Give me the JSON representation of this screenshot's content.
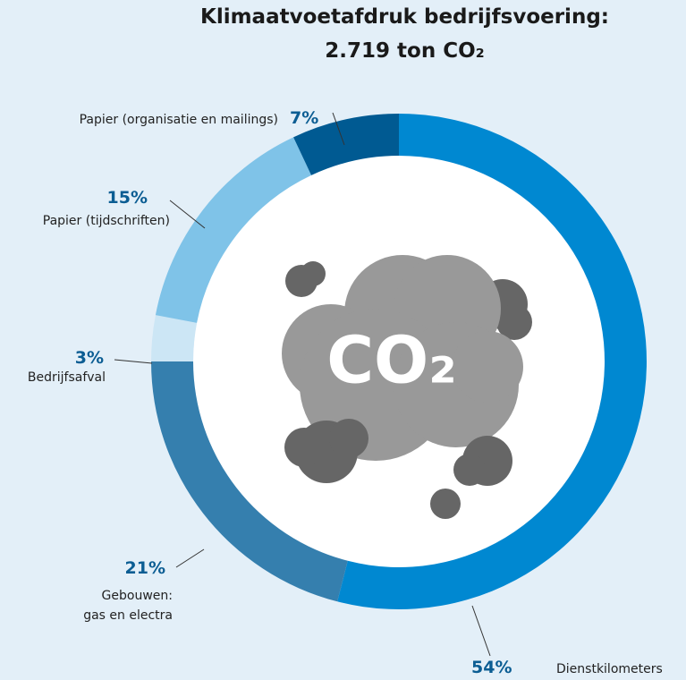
{
  "chart_data": {
    "type": "donut",
    "title": [
      "Klimaatvoetafdruk bedrijfsvoering:",
      "2.719 ton CO₂"
    ],
    "center_label": "CO₂",
    "categories": [
      "Dienstkilometers",
      "Gebouwen:\ngas en electra",
      "Bedrijfsafval",
      "Papier (tijdschriften)",
      "Papier (organisatie en mailings)"
    ],
    "values": [
      54,
      21,
      3,
      15,
      7
    ],
    "value_labels": [
      "54%",
      "21%",
      "3%",
      "15%",
      "7%"
    ],
    "colors": [
      "#0088d1",
      "#357fae",
      "#cce6f5",
      "#7fc3e8",
      "#005a92"
    ]
  }
}
